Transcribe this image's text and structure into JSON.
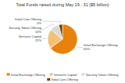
{
  "chart_data": {
    "type": "pie",
    "title": "Total Funds raised during May 19 - 31 ($5 billion)",
    "categories": [
      "Initial Exchange Offering",
      "Ventures Capital",
      "Security Token Offering",
      "Initial Coin Offering"
    ],
    "values": [
      65,
      21,
      10,
      4
    ],
    "value_labels": [
      "65%",
      "21%",
      "10%",
      "4%"
    ],
    "colors": [
      "#e8820c",
      "#f5c07a",
      "#d9d9d9",
      "#7b3f00"
    ],
    "data_labels": true,
    "legend": "bottom"
  }
}
